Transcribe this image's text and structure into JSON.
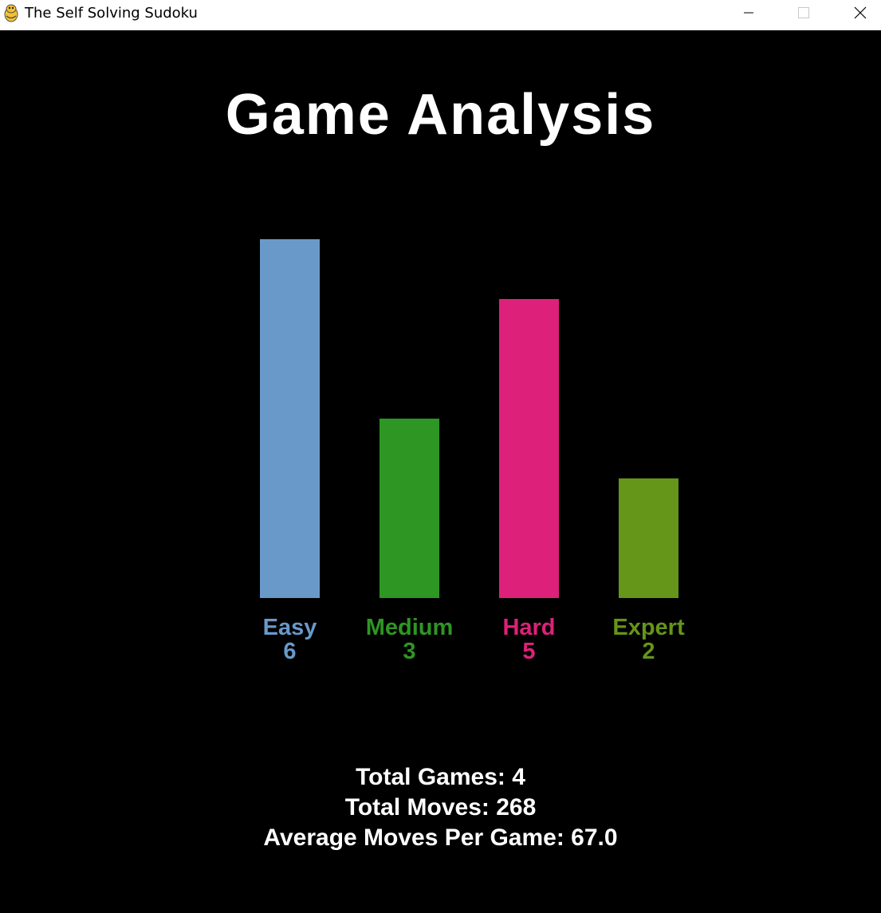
{
  "window": {
    "title": "The Self Solving Sudoku",
    "icon": "pygame-snake-icon"
  },
  "page": {
    "title": "Game Analysis"
  },
  "chart_data": {
    "type": "bar",
    "categories": [
      "Easy",
      "Medium",
      "Hard",
      "Expert"
    ],
    "values": [
      6,
      3,
      5,
      2
    ],
    "colors": [
      "#6999C9",
      "#2E9623",
      "#DD217A",
      "#659519"
    ],
    "title": "",
    "xlabel": "",
    "ylabel": "",
    "ylim": [
      0,
      6
    ],
    "grid": false,
    "legend": "none"
  },
  "stats": {
    "total_games": "Total Games: 4",
    "total_moves": "Total Moves: 268",
    "average_moves": "Average Moves Per Game: 67.0"
  }
}
